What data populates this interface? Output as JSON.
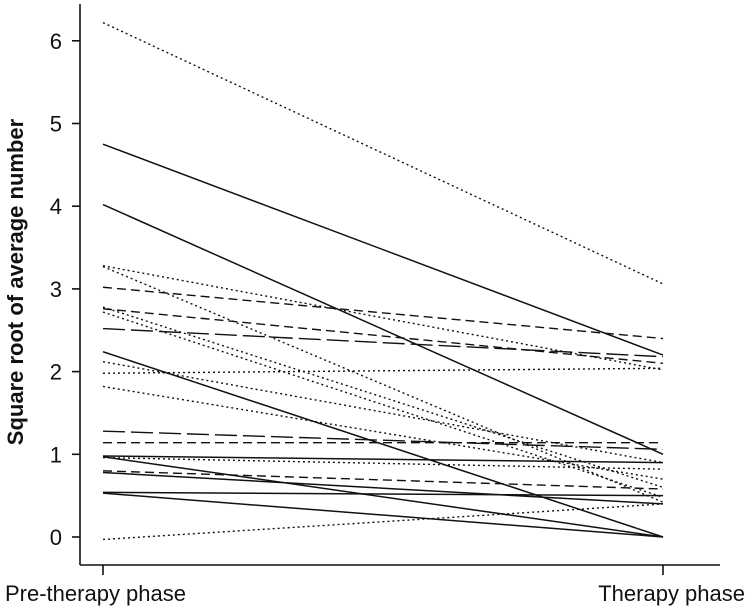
{
  "chart_data": {
    "type": "line",
    "title": "",
    "xlabel": "",
    "ylabel": "Square root of average number",
    "categories": [
      "Pre-therapy phase",
      "Therapy phase"
    ],
    "yticks": [
      0,
      1,
      2,
      3,
      4,
      5,
      6
    ],
    "ylim": [
      -0.2,
      6.4
    ],
    "grid": false,
    "legend": "none",
    "line_color": "#111111",
    "series": [
      {
        "style": "dotted",
        "values": [
          6.22,
          3.06
        ]
      },
      {
        "style": "solid",
        "values": [
          4.75,
          2.2
        ]
      },
      {
        "style": "solid",
        "values": [
          4.02,
          1.0
        ]
      },
      {
        "style": "dotted",
        "values": [
          3.28,
          2.02
        ]
      },
      {
        "style": "dotted",
        "values": [
          3.27,
          0.42
        ]
      },
      {
        "style": "dashed",
        "values": [
          3.02,
          2.4
        ]
      },
      {
        "style": "dotted",
        "values": [
          2.78,
          0.6
        ]
      },
      {
        "style": "dashed",
        "values": [
          2.76,
          2.1
        ]
      },
      {
        "style": "dotted",
        "values": [
          2.72,
          0.48
        ]
      },
      {
        "style": "longdash",
        "values": [
          2.52,
          2.18
        ]
      },
      {
        "style": "solid",
        "values": [
          2.24,
          0.0
        ]
      },
      {
        "style": "dotted",
        "values": [
          2.12,
          0.9
        ]
      },
      {
        "style": "dotted",
        "values": [
          1.98,
          2.04
        ]
      },
      {
        "style": "dotted",
        "values": [
          1.82,
          0.7
        ]
      },
      {
        "style": "longdash",
        "values": [
          1.28,
          1.06
        ]
      },
      {
        "style": "dashed",
        "values": [
          1.14,
          1.14
        ]
      },
      {
        "style": "solid",
        "values": [
          0.98,
          0.9
        ]
      },
      {
        "style": "solid",
        "values": [
          0.97,
          0.0
        ]
      },
      {
        "style": "dotted",
        "values": [
          0.96,
          0.82
        ]
      },
      {
        "style": "dashed",
        "values": [
          0.8,
          0.58
        ]
      },
      {
        "style": "solid",
        "values": [
          0.78,
          0.4
        ]
      },
      {
        "style": "solid",
        "values": [
          0.54,
          0.5
        ]
      },
      {
        "style": "solid",
        "values": [
          0.53,
          0.0
        ]
      },
      {
        "style": "dotted",
        "values": [
          -0.03,
          0.4
        ]
      }
    ]
  }
}
